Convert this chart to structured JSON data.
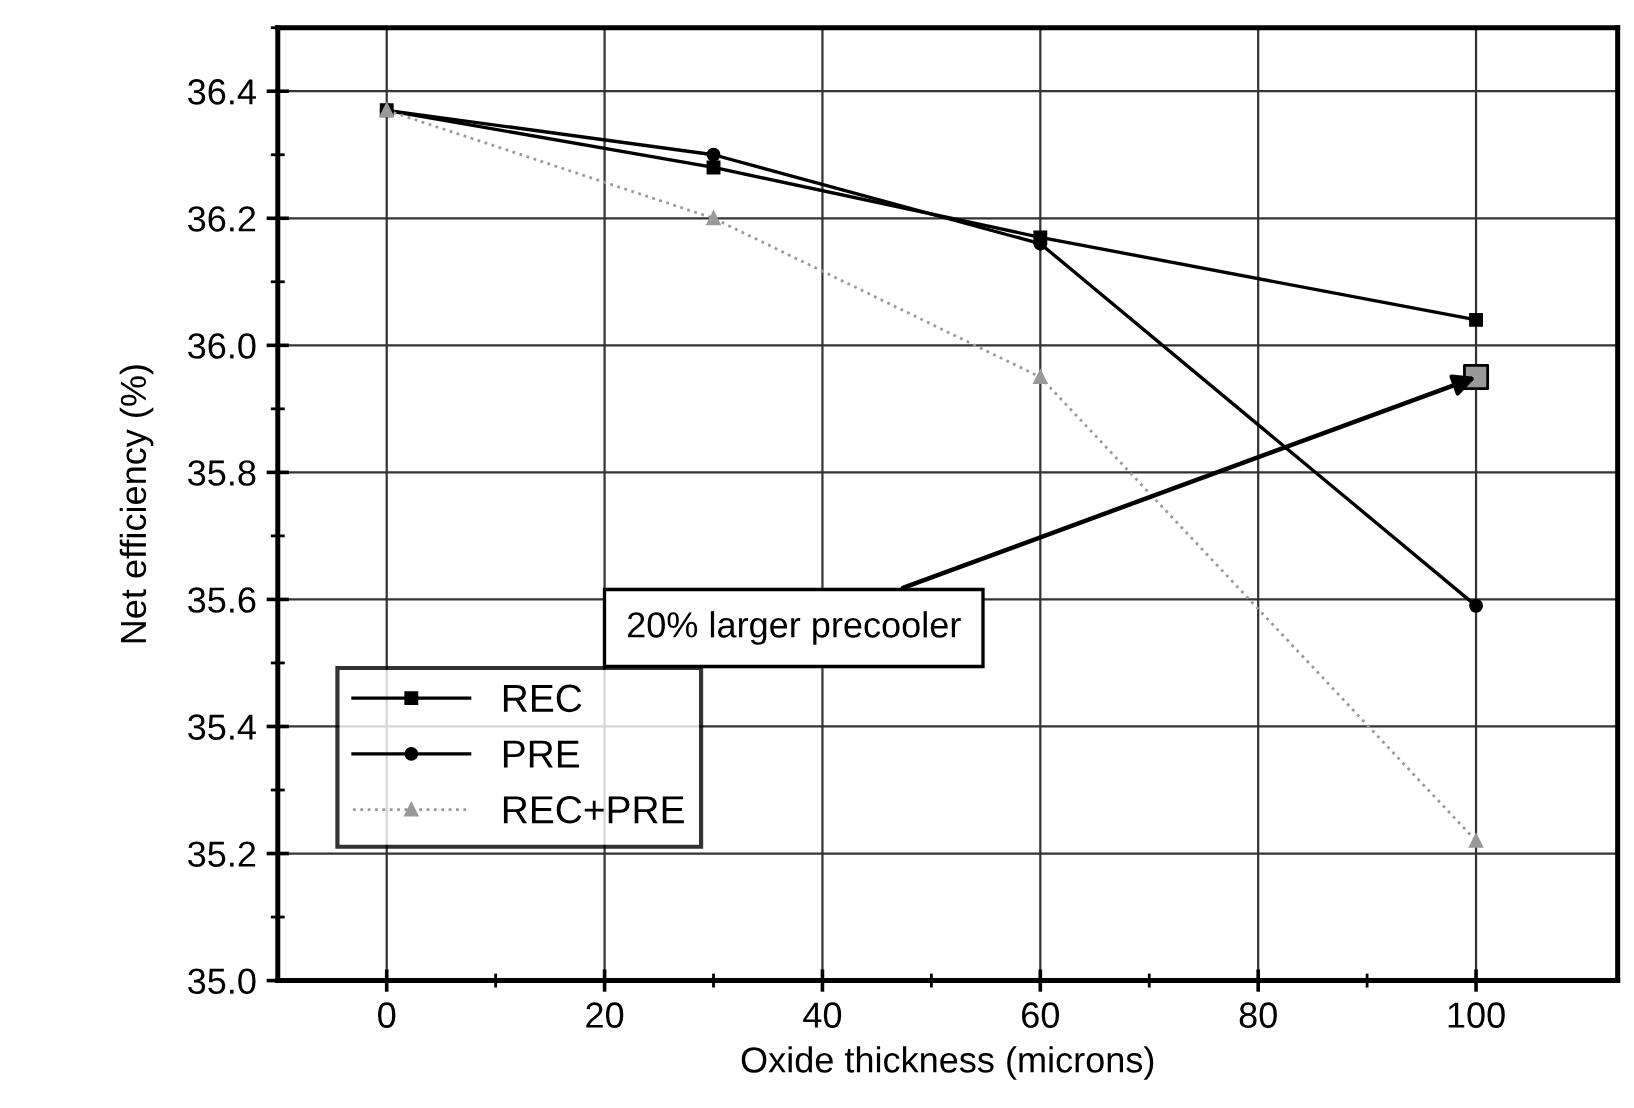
{
  "chart_data": {
    "type": "line",
    "xlabel": "Oxide thickness (microns)",
    "ylabel": "Net efficiency (%)",
    "x": [
      0,
      30,
      60,
      100
    ],
    "series": [
      {
        "name": "REC",
        "color": "#000000",
        "values": [
          36.37,
          36.28,
          36.17,
          36.04
        ],
        "marker": "square",
        "line_style": "solid"
      },
      {
        "name": "PRE",
        "color": "#000000",
        "values": [
          36.37,
          36.3,
          36.16,
          35.59
        ],
        "marker": "circle",
        "line_style": "solid"
      },
      {
        "name": "REC+PRE",
        "color": "#999999",
        "values": [
          36.37,
          36.2,
          35.95,
          35.22
        ],
        "marker": "triangle",
        "line_style": "dotted"
      },
      {
        "type": "scatter",
        "color": "#999999",
        "x": [
          100
        ],
        "values": [
          35.95
        ],
        "marker": "square"
      }
    ],
    "annotations": [
      {
        "text": "20% larger precooler",
        "x": 100,
        "y": 35.95
      }
    ],
    "xlim": [
      -10,
      113
    ],
    "xticks": [
      0,
      20,
      40,
      60,
      80,
      100
    ],
    "ylim": [
      35.0,
      36.5
    ],
    "yticks": [
      {
        "value": 35.0,
        "label": "35.0"
      },
      {
        "value": 35.2,
        "label": "35.2"
      },
      {
        "value": 35.4,
        "label": "35.4"
      },
      {
        "value": 35.6,
        "label": "35.6"
      },
      {
        "value": 35.8,
        "label": "35.8"
      },
      {
        "value": 36.0,
        "label": "36.0"
      },
      {
        "value": 36.2,
        "label": "36.2"
      },
      {
        "value": 36.4,
        "label": "36.4"
      }
    ],
    "grid": true,
    "legend": "bottom left"
  }
}
